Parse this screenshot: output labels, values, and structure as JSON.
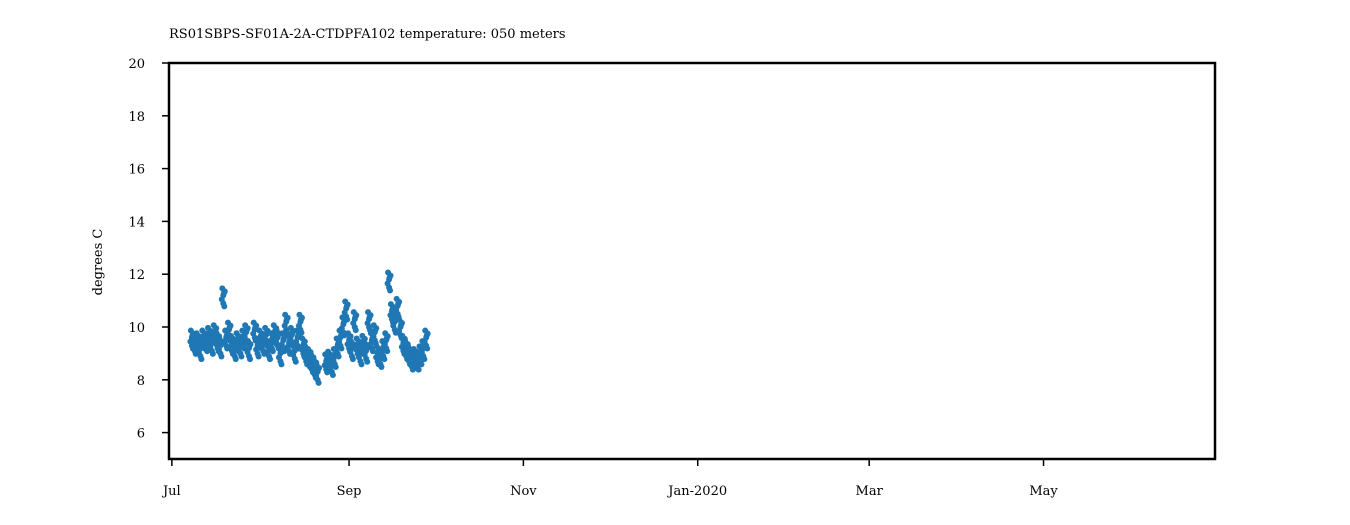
{
  "chart_data": {
    "type": "scatter",
    "title": "RS01SBPS-SF01A-2A-CTDPFA102 temperature: 050 meters",
    "xlabel": "",
    "ylabel": "degrees C",
    "ylim": [
      5,
      20
    ],
    "xlim": [
      "2019-06-30",
      "2020-06-30"
    ],
    "yticks": [
      6,
      8,
      10,
      12,
      14,
      16,
      18,
      20
    ],
    "xticks": [
      {
        "date": "2019-07-01",
        "label": "Jul"
      },
      {
        "date": "2019-09-01",
        "label": "Sep"
      },
      {
        "date": "2019-11-01",
        "label": "Nov"
      },
      {
        "date": "2020-01-01",
        "label": "Jan-2020"
      },
      {
        "date": "2020-03-01",
        "label": "Mar"
      },
      {
        "date": "2020-05-01",
        "label": "May"
      }
    ],
    "grid": false,
    "marker_color": "#1f77b4",
    "series": [
      {
        "points": [
          [
            "2019-07-08",
            9.6
          ],
          [
            "2019-07-09",
            9.4
          ],
          [
            "2019-07-10",
            9.5
          ],
          [
            "2019-07-11",
            9.2
          ],
          [
            "2019-07-12",
            9.6
          ],
          [
            "2019-07-13",
            9.5
          ],
          [
            "2019-07-14",
            9.7
          ],
          [
            "2019-07-15",
            9.4
          ],
          [
            "2019-07-16",
            9.8
          ],
          [
            "2019-07-17",
            9.5
          ],
          [
            "2019-07-18",
            9.3
          ],
          [
            "2019-07-19",
            11.2
          ],
          [
            "2019-07-20",
            9.6
          ],
          [
            "2019-07-21",
            9.9
          ],
          [
            "2019-07-22",
            9.4
          ],
          [
            "2019-07-23",
            9.2
          ],
          [
            "2019-07-24",
            9.5
          ],
          [
            "2019-07-25",
            9.3
          ],
          [
            "2019-07-26",
            9.6
          ],
          [
            "2019-07-27",
            9.8
          ],
          [
            "2019-07-28",
            9.2
          ],
          [
            "2019-07-30",
            9.9
          ],
          [
            "2019-07-31",
            9.3
          ],
          [
            "2019-08-01",
            9.6
          ],
          [
            "2019-08-02",
            9.4
          ],
          [
            "2019-08-03",
            9.7
          ],
          [
            "2019-08-04",
            9.2
          ],
          [
            "2019-08-05",
            9.5
          ],
          [
            "2019-08-06",
            9.8
          ],
          [
            "2019-08-07",
            9.6
          ],
          [
            "2019-08-08",
            9.0
          ],
          [
            "2019-08-09",
            9.5
          ],
          [
            "2019-08-10",
            10.2
          ],
          [
            "2019-08-11",
            9.4
          ],
          [
            "2019-08-12",
            9.7
          ],
          [
            "2019-08-13",
            9.1
          ],
          [
            "2019-08-14",
            9.6
          ],
          [
            "2019-08-15",
            10.2
          ],
          [
            "2019-08-16",
            9.3
          ],
          [
            "2019-08-17",
            9.0
          ],
          [
            "2019-08-18",
            8.9
          ],
          [
            "2019-08-19",
            8.7
          ],
          [
            "2019-08-20",
            8.5
          ],
          [
            "2019-08-21",
            8.3
          ],
          [
            "2019-08-24",
            8.7
          ],
          [
            "2019-08-25",
            8.8
          ],
          [
            "2019-08-26",
            8.6
          ],
          [
            "2019-08-27",
            8.9
          ],
          [
            "2019-08-28",
            9.3
          ],
          [
            "2019-08-29",
            9.6
          ],
          [
            "2019-08-30",
            10.1
          ],
          [
            "2019-08-31",
            10.7
          ],
          [
            "2019-09-01",
            9.5
          ],
          [
            "2019-09-02",
            9.2
          ],
          [
            "2019-09-03",
            10.3
          ],
          [
            "2019-09-04",
            9.3
          ],
          [
            "2019-09-05",
            9.0
          ],
          [
            "2019-09-06",
            9.4
          ],
          [
            "2019-09-07",
            9.1
          ],
          [
            "2019-09-08",
            10.3
          ],
          [
            "2019-09-09",
            9.5
          ],
          [
            "2019-09-10",
            9.8
          ],
          [
            "2019-09-11",
            9.0
          ],
          [
            "2019-09-12",
            8.9
          ],
          [
            "2019-09-13",
            9.2
          ],
          [
            "2019-09-14",
            9.5
          ],
          [
            "2019-09-15",
            11.8
          ],
          [
            "2019-09-16",
            10.6
          ],
          [
            "2019-09-17",
            10.2
          ],
          [
            "2019-09-18",
            10.8
          ],
          [
            "2019-09-19",
            10.0
          ],
          [
            "2019-09-20",
            9.4
          ],
          [
            "2019-09-21",
            9.2
          ],
          [
            "2019-09-22",
            9.0
          ],
          [
            "2019-09-23",
            8.8
          ],
          [
            "2019-09-24",
            8.9
          ],
          [
            "2019-09-25",
            8.8
          ],
          [
            "2019-09-26",
            9.0
          ],
          [
            "2019-09-27",
            9.2
          ],
          [
            "2019-09-28",
            9.6
          ]
        ]
      }
    ]
  }
}
